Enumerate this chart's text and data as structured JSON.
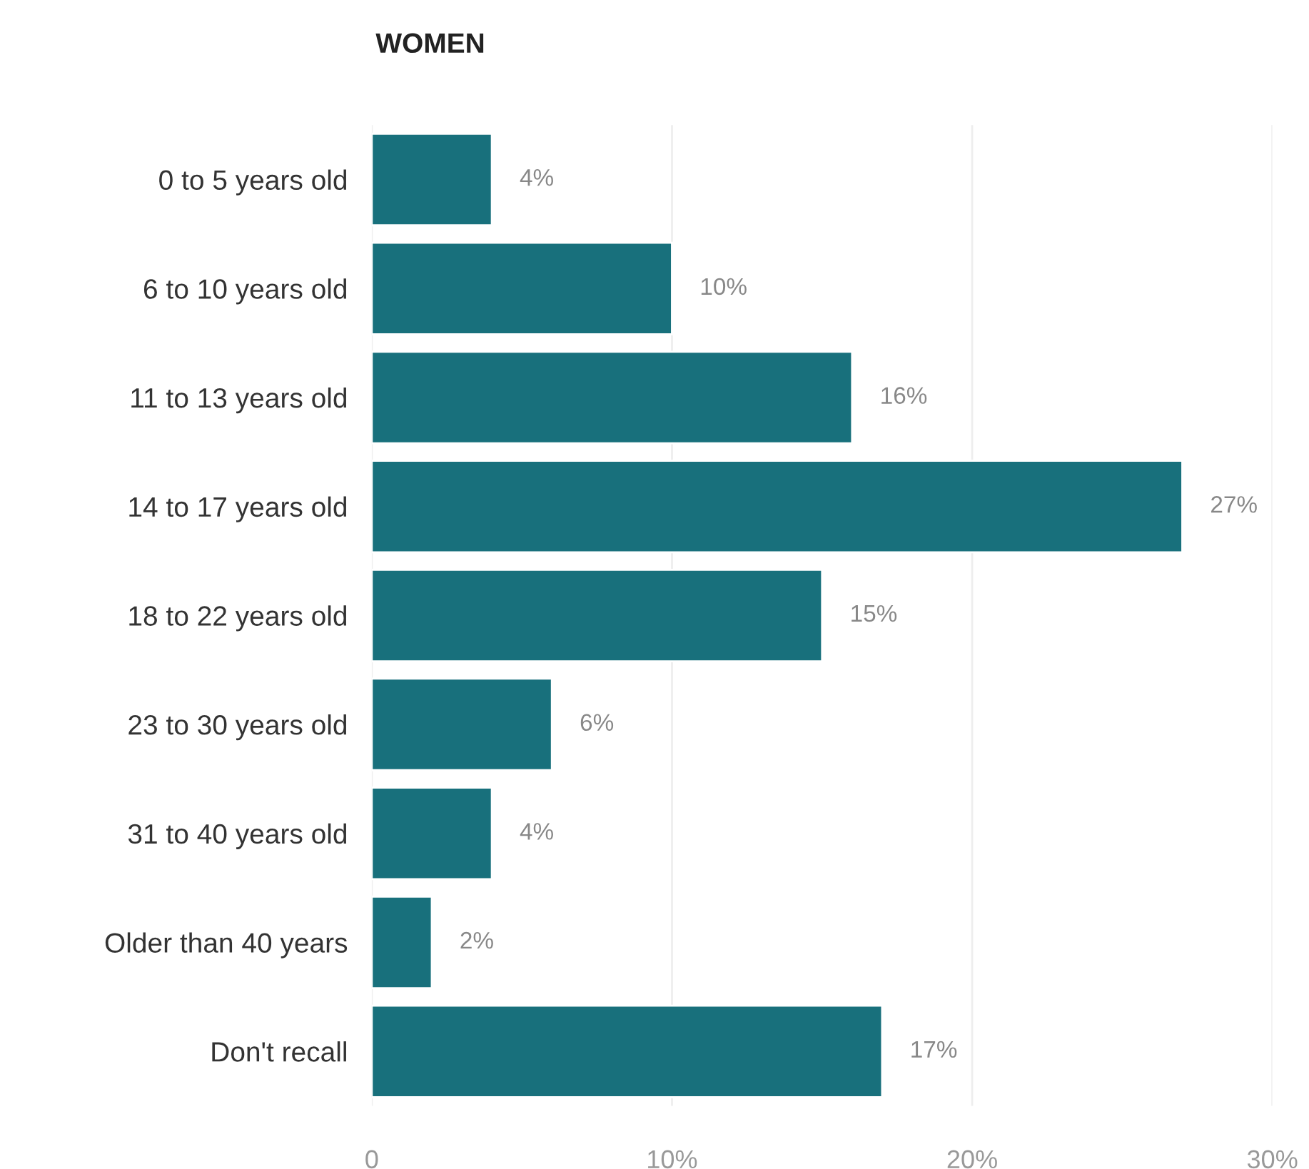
{
  "chart_data": {
    "type": "bar",
    "orientation": "horizontal",
    "title": "WOMEN",
    "categories": [
      "0 to 5 years old",
      "6 to 10 years old",
      "11 to 13 years old",
      "14 to 17 years old",
      "18 to 22 years old",
      "23 to 30 years old",
      "31 to 40 years old",
      "Older than 40 years",
      "Don't recall"
    ],
    "values": [
      4,
      10,
      16,
      27,
      15,
      6,
      4,
      2,
      17
    ],
    "value_labels": [
      "4%",
      "10%",
      "16%",
      "27%",
      "15%",
      "6%",
      "4%",
      "2%",
      "17%"
    ],
    "color": "#18707c",
    "xlim": [
      0,
      30
    ],
    "xticks": [
      0,
      {
        "value": 10,
        "label": "10%"
      },
      {
        "value": 20,
        "label": "20%"
      },
      {
        "value": 30,
        "label": "30%"
      }
    ],
    "grid": "x"
  }
}
